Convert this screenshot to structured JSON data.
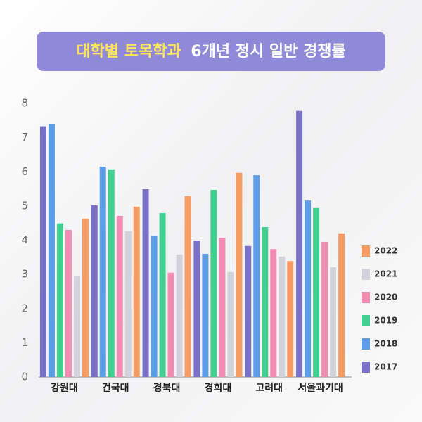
{
  "chart_data": {
    "type": "bar",
    "title_parts": [
      "대학별 토목학과",
      "6개년 정시 일반 경쟁률"
    ],
    "categories": [
      "강원대",
      "건국대",
      "경북대",
      "경희대",
      "고려대",
      "서울과기대"
    ],
    "series": [
      {
        "name": "2017",
        "color": "#7a70c6",
        "values": [
          7.33,
          5.02,
          5.49,
          3.99,
          3.83,
          7.78
        ]
      },
      {
        "name": "2018",
        "color": "#5d9de8",
        "values": [
          7.4,
          6.15,
          4.12,
          3.6,
          5.9,
          5.16
        ]
      },
      {
        "name": "2019",
        "color": "#42cf8f",
        "values": [
          4.49,
          6.07,
          4.79,
          5.47,
          4.38,
          4.94
        ]
      },
      {
        "name": "2020",
        "color": "#f28db2",
        "values": [
          4.3,
          4.71,
          3.05,
          4.07,
          3.74,
          3.95
        ]
      },
      {
        "name": "2021",
        "color": "#d3d2da",
        "values": [
          2.96,
          4.26,
          3.58,
          3.07,
          3.52,
          3.21
        ]
      },
      {
        "name": "2022",
        "color": "#f59c64",
        "values": [
          4.63,
          4.98,
          5.29,
          5.97,
          3.39,
          4.2
        ]
      }
    ],
    "ylim": [
      0,
      8
    ],
    "yticks": [
      0,
      1,
      2,
      3,
      4,
      5,
      6,
      7,
      8
    ],
    "legend": "right"
  }
}
